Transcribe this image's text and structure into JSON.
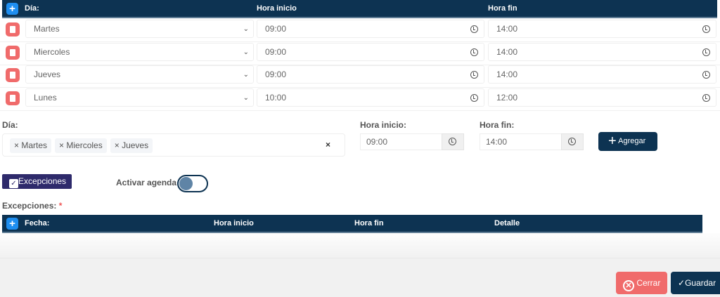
{
  "schedule_table": {
    "headers": {
      "day": "Día:",
      "start": "Hora inicio",
      "end": "Hora fin"
    },
    "rows": [
      {
        "day": "Martes",
        "start": "09:00",
        "end": "14:00"
      },
      {
        "day": "Miercoles",
        "start": "09:00",
        "end": "14:00"
      },
      {
        "day": "Jueves",
        "start": "09:00",
        "end": "14:00"
      },
      {
        "day": "Lunes",
        "start": "10:00",
        "end": "12:00"
      }
    ]
  },
  "form": {
    "day_label": "Día:",
    "selected_days": [
      "Martes",
      "Miercoles",
      "Jueves"
    ],
    "clear_label": "×",
    "start_label": "Hora inicio:",
    "start_value": "09:00",
    "end_label": "Hora fin:",
    "end_value": "14:00",
    "add_label": "Agregar"
  },
  "exceptions_button": "Excepciones",
  "activate_label": "Activar agenda",
  "activate_on": false,
  "exceptions": {
    "label": "Excepciones:",
    "required": "*",
    "headers": {
      "date": "Fecha:",
      "start": "Hora inicio",
      "end": "Hora fin",
      "detail": "Detalle"
    }
  },
  "footer": {
    "close": "Cerrar",
    "save": "Guardar"
  },
  "colors": {
    "navy": "#0d3352",
    "danger": "#f06b6b",
    "purple": "#2e2a6b",
    "blue": "#1e8ef0"
  }
}
